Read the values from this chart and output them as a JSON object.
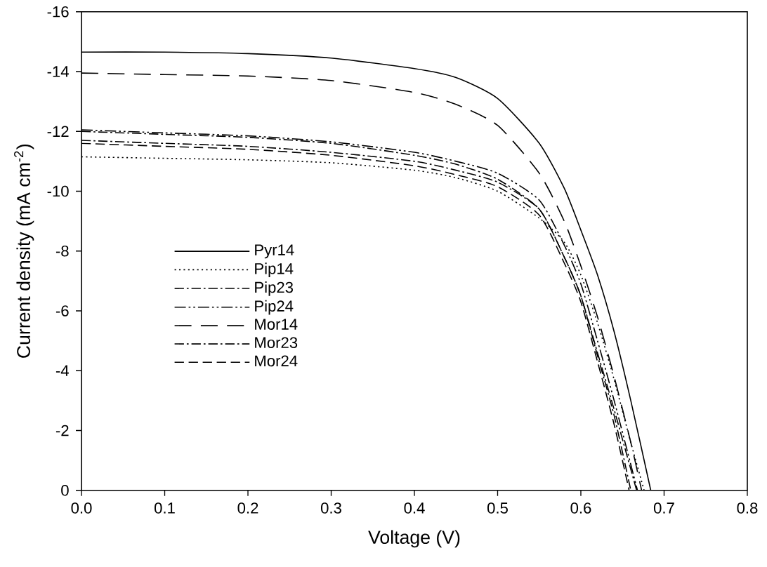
{
  "chart_data": {
    "type": "line",
    "xlabel": "Voltage (V)",
    "ylabel": "Current density (mA cm$^{-2}$)",
    "xlim": [
      0,
      0.8
    ],
    "ylim": [
      0,
      -16
    ],
    "xticks": [
      {
        "value": 0,
        "label": "0.0"
      },
      {
        "value": 0.1,
        "label": "0.1"
      },
      {
        "value": 0.2,
        "label": "0.2"
      },
      {
        "value": 0.3,
        "label": "0.3"
      },
      {
        "value": 0.4,
        "label": "0.4"
      },
      {
        "value": 0.5,
        "label": "0.5"
      },
      {
        "value": 0.6,
        "label": "0.6"
      },
      {
        "value": 0.7,
        "label": "0.7"
      },
      {
        "value": 0.8,
        "label": "0.8"
      }
    ],
    "yticks": [
      -16,
      -14,
      -12,
      -10,
      -8,
      -6,
      -4,
      -2,
      0
    ],
    "legend": "left",
    "grid": false,
    "marker": "none",
    "series": [
      {
        "name": "Pyr14",
        "color": "#000000",
        "line_style": "solid",
        "x": [
          0,
          0.1,
          0.2,
          0.3,
          0.4,
          0.45,
          0.5,
          0.55,
          0.58,
          0.6,
          0.62,
          0.64,
          0.66,
          0.684
        ],
        "values": [
          -14.65,
          -14.65,
          -14.6,
          -14.45,
          -14.1,
          -13.8,
          -13.1,
          -11.6,
          -10.1,
          -8.7,
          -7.2,
          -5.3,
          -3.0,
          0
        ]
      },
      {
        "name": "Pip14",
        "color": "#000000",
        "line_style": "dotted",
        "x": [
          0,
          0.1,
          0.2,
          0.3,
          0.4,
          0.45,
          0.5,
          0.55,
          0.58,
          0.6,
          0.62,
          0.64,
          0.66,
          0.676
        ],
        "values": [
          -11.15,
          -11.1,
          -11.05,
          -10.95,
          -10.7,
          -10.45,
          -10.0,
          -9.1,
          -8.3,
          -7.2,
          -5.6,
          -3.7,
          -1.6,
          0
        ]
      },
      {
        "name": "Pip23",
        "color": "#000000",
        "line_style": "dashdot",
        "x": [
          0,
          0.1,
          0.2,
          0.3,
          0.4,
          0.45,
          0.5,
          0.55,
          0.58,
          0.6,
          0.62,
          0.64,
          0.667
        ],
        "values": [
          -11.7,
          -11.6,
          -11.5,
          -11.3,
          -11.0,
          -10.7,
          -10.3,
          -9.4,
          -7.8,
          -6.5,
          -4.6,
          -2.7,
          0
        ]
      },
      {
        "name": "Pip24",
        "color": "#000000",
        "line_style": "dashdotdot",
        "x": [
          0,
          0.1,
          0.2,
          0.3,
          0.4,
          0.45,
          0.5,
          0.55,
          0.58,
          0.6,
          0.62,
          0.64,
          0.668
        ],
        "values": [
          -12.05,
          -11.95,
          -11.85,
          -11.65,
          -11.3,
          -11.0,
          -10.6,
          -9.7,
          -8.2,
          -6.9,
          -5.0,
          -3.0,
          0
        ]
      },
      {
        "name": "Mor14",
        "color": "#000000",
        "line_style": "longdashed",
        "x": [
          0,
          0.1,
          0.2,
          0.3,
          0.4,
          0.45,
          0.5,
          0.55,
          0.58,
          0.6,
          0.62,
          0.64,
          0.66,
          0.673
        ],
        "values": [
          -13.95,
          -13.9,
          -13.85,
          -13.7,
          -13.3,
          -12.9,
          -12.2,
          -10.6,
          -9.0,
          -7.5,
          -5.8,
          -3.8,
          -1.6,
          0
        ]
      },
      {
        "name": "Mor23",
        "color": "#000000",
        "line_style": "dashdot",
        "x": [
          0,
          0.1,
          0.2,
          0.3,
          0.4,
          0.45,
          0.5,
          0.55,
          0.58,
          0.6,
          0.62,
          0.64,
          0.66
        ],
        "values": [
          -12.0,
          -11.9,
          -11.8,
          -11.6,
          -11.2,
          -10.9,
          -10.4,
          -9.4,
          -7.8,
          -6.5,
          -4.5,
          -2.5,
          0
        ]
      },
      {
        "name": "Mor24",
        "color": "#000000",
        "line_style": "dashed",
        "x": [
          0,
          0.1,
          0.2,
          0.3,
          0.4,
          0.45,
          0.5,
          0.55,
          0.58,
          0.6,
          0.62,
          0.64,
          0.658
        ],
        "values": [
          -11.6,
          -11.5,
          -11.4,
          -11.2,
          -10.85,
          -10.55,
          -10.15,
          -9.2,
          -7.6,
          -6.3,
          -4.3,
          -2.2,
          0
        ]
      }
    ]
  }
}
